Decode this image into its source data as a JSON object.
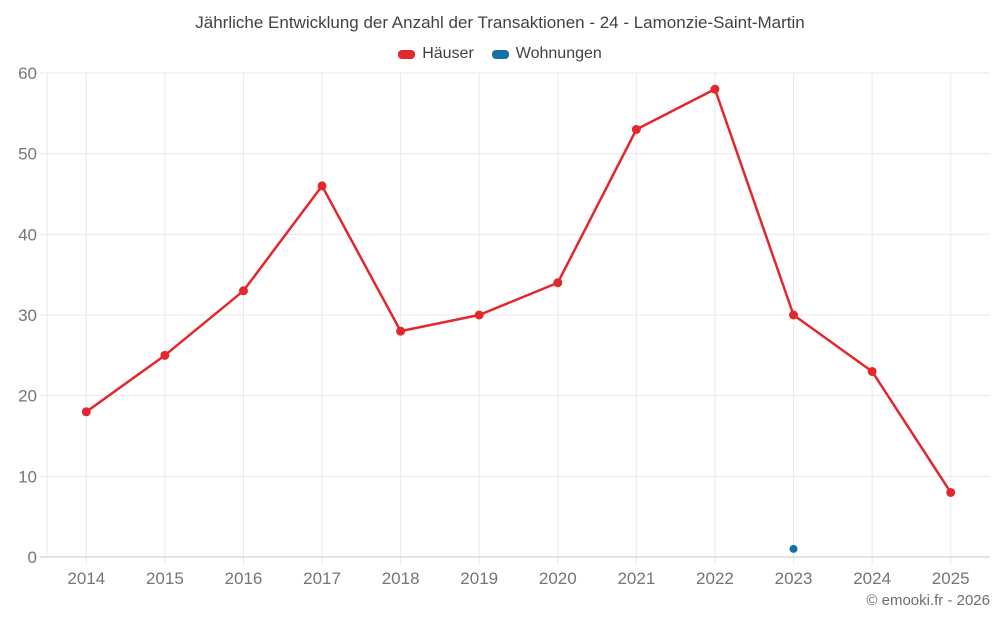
{
  "chart_data": {
    "type": "line",
    "title": "Jährliche Entwicklung der Anzahl der Transaktionen - 24 - Lamonzie-Saint-Martin",
    "footer": "© emooki.fr - 2026",
    "categories": [
      "2014",
      "2015",
      "2016",
      "2017",
      "2018",
      "2019",
      "2020",
      "2021",
      "2022",
      "2023",
      "2024",
      "2025"
    ],
    "series": [
      {
        "name": "Häuser",
        "color": "#e2272d",
        "values": [
          18,
          25,
          33,
          46,
          28,
          30,
          34,
          53,
          58,
          30,
          23,
          8
        ]
      },
      {
        "name": "Wohnungen",
        "color": "#1670a8",
        "values": [
          null,
          null,
          null,
          null,
          null,
          null,
          null,
          null,
          null,
          1,
          null,
          null
        ]
      }
    ],
    "ylim": [
      0,
      60
    ],
    "ytick_step": 10,
    "xlabel": "",
    "ylabel": "",
    "grid": true,
    "legend_position": "top",
    "colors": {
      "grid": "#e9e9e9",
      "axis": "#c9c9c9",
      "tick_label": "#757575",
      "title_text": "#424242",
      "footer_text": "#6e6e6e"
    }
  }
}
